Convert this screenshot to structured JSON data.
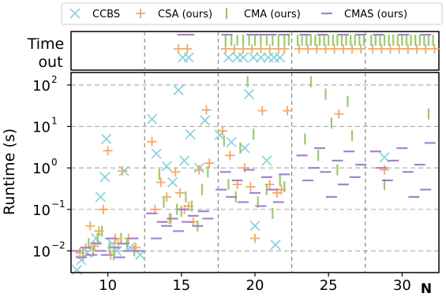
{
  "chart_data": {
    "type": "scatter",
    "xlabel": "N",
    "ylabel": "Runtime (s)",
    "timeout_label": [
      "Time",
      "out"
    ],
    "y_scale": "log",
    "ylim": [
      0.003,
      200
    ],
    "xlim": [
      7.5,
      32.5
    ],
    "x_ticks": [
      10,
      15,
      20,
      25,
      30
    ],
    "x_tick_labels": [
      "10",
      "15",
      "20",
      "25",
      "30"
    ],
    "y_tick_labels": [
      {
        "base": "10",
        "exp": "2",
        "value": 100
      },
      {
        "base": "10",
        "exp": "1",
        "value": 10
      },
      {
        "base": "10",
        "exp": "0",
        "value": 1
      },
      {
        "base": "10",
        "exp": "−1",
        "value": 0.1
      },
      {
        "base": "10",
        "exp": "−2",
        "value": 0.01
      }
    ],
    "group_separators": [
      12.5,
      17.5,
      22.5,
      27.5
    ],
    "grid": true,
    "legend": {
      "placement": "top",
      "entries": [
        {
          "name": "CCBS",
          "marker": "x",
          "color": "#8fd3dc"
        },
        {
          "name": "CSA (ours)",
          "marker": "+",
          "color": "#f6a662"
        },
        {
          "name": "CMA (ours)",
          "marker": "|",
          "color": "#98cc6a"
        },
        {
          "name": "CMAS (ours)",
          "marker": "_",
          "color": "#a682cd"
        }
      ]
    },
    "series": [
      {
        "name": "CCBS",
        "points": [
          [
            7.9,
            0.0035
          ],
          [
            8.2,
            0.006
          ],
          [
            8.6,
            0.009
          ],
          [
            9.2,
            0.02
          ],
          [
            9.5,
            0.2
          ],
          [
            9.8,
            0.6
          ],
          [
            9.9,
            5
          ],
          [
            10.3,
            0.015
          ],
          [
            10.6,
            0.01
          ],
          [
            11.1,
            0.85
          ],
          [
            11.5,
            0.012
          ],
          [
            12.2,
            0.008
          ],
          [
            13.0,
            15
          ],
          [
            13.3,
            2.2
          ],
          [
            14.0,
            1.1
          ],
          [
            14.4,
            0.45
          ],
          [
            14.8,
            75
          ],
          [
            15.2,
            1.5
          ],
          [
            15.6,
            6.5
          ],
          [
            16.2,
            1.0
          ],
          [
            16.6,
            14
          ],
          [
            17.6,
            6.2
          ],
          [
            18.4,
            4.2
          ],
          [
            19.3,
            3.0
          ],
          [
            19.6,
            60
          ],
          [
            20.0,
            0.04
          ],
          [
            20.8,
            1.5
          ],
          [
            21.4,
            0.014
          ],
          [
            28.8,
            1.8
          ]
        ],
        "timeouts": [
          15.1,
          15.5,
          18.2,
          18.8,
          19.2,
          19.9,
          20.4,
          20.9,
          21.3,
          21.7
        ]
      },
      {
        "name": "CSA (ours)",
        "points": [
          [
            8.1,
            0.009
          ],
          [
            8.5,
            0.012
          ],
          [
            8.8,
            0.04
          ],
          [
            9.1,
            0.013
          ],
          [
            9.4,
            0.03
          ],
          [
            9.7,
            0.1
          ],
          [
            10.0,
            2.6
          ],
          [
            10.2,
            0.008
          ],
          [
            10.5,
            0.02
          ],
          [
            10.7,
            0.015
          ],
          [
            11.0,
            0.85
          ],
          [
            11.4,
            0.02
          ],
          [
            11.9,
            0.012
          ],
          [
            13.0,
            4.3
          ],
          [
            13.2,
            0.1
          ],
          [
            13.6,
            0.45
          ],
          [
            14.0,
            0.2
          ],
          [
            14.3,
            0.06
          ],
          [
            14.6,
            0.8
          ],
          [
            14.9,
            0.25
          ],
          [
            15.2,
            0.1
          ],
          [
            15.5,
            0.12
          ],
          [
            15.8,
            0.05
          ],
          [
            16.2,
            0.9
          ],
          [
            16.7,
            25
          ],
          [
            16.9,
            1.3
          ],
          [
            17.8,
            7.8
          ],
          [
            18.3,
            2.0
          ],
          [
            18.8,
            0.4
          ],
          [
            19.3,
            1.0
          ],
          [
            19.7,
            0.35
          ],
          [
            20.0,
            0.02
          ],
          [
            20.5,
            24
          ],
          [
            21.0,
            0.4
          ],
          [
            21.5,
            0.25
          ],
          [
            21.8,
            0.3
          ],
          [
            22.2,
            24
          ],
          [
            25.7,
            20
          ],
          [
            28.8,
            0.9
          ]
        ],
        "timeouts": [
          14.8,
          15.4,
          18.0,
          18.6,
          19.2,
          19.8,
          20.4,
          21.0,
          21.6,
          22.0,
          23.0,
          23.6,
          24.2,
          24.8,
          25.4,
          26.0,
          26.6,
          27.2,
          28.0,
          28.6,
          29.2,
          29.8,
          30.4,
          31.0,
          31.6,
          32.2
        ]
      },
      {
        "name": "CMA (ours)",
        "points": [
          [
            8.3,
            0.008
          ],
          [
            8.7,
            0.015
          ],
          [
            9.0,
            0.01
          ],
          [
            9.3,
            0.02
          ],
          [
            9.6,
            0.03
          ],
          [
            10.1,
            0.012
          ],
          [
            10.4,
            0.008
          ],
          [
            10.9,
            0.02
          ],
          [
            11.3,
            0.015
          ],
          [
            11.8,
            0.01
          ],
          [
            13.5,
            0.7
          ],
          [
            13.8,
            0.15
          ],
          [
            14.2,
            0.06
          ],
          [
            14.7,
            0.1
          ],
          [
            15.0,
            0.09
          ],
          [
            15.3,
            0.2
          ],
          [
            15.7,
            0.12
          ],
          [
            16.1,
            0.04
          ],
          [
            16.4,
            0.3
          ],
          [
            16.8,
            0.8
          ],
          [
            17.9,
            4.5
          ],
          [
            18.2,
            0.4
          ],
          [
            18.7,
            0.2
          ],
          [
            19.0,
            3.0
          ],
          [
            19.5,
            120
          ],
          [
            19.9,
            6.5
          ],
          [
            20.2,
            0.15
          ],
          [
            20.8,
            0.3
          ],
          [
            21.2,
            0.08
          ],
          [
            21.7,
            0.5
          ],
          [
            22.0,
            0.35
          ],
          [
            23.4,
            5.0
          ],
          [
            23.8,
            120
          ],
          [
            24.3,
            2.0
          ],
          [
            24.8,
            60
          ],
          [
            25.2,
            12
          ],
          [
            25.6,
            0.9
          ],
          [
            26.3,
            40
          ],
          [
            26.6,
            6.0
          ],
          [
            28.8,
            0.4
          ],
          [
            31.8,
            20
          ]
        ],
        "timeouts": [
          18.0,
          18.4,
          18.8,
          19.2,
          19.6,
          20.0,
          20.4,
          20.8,
          21.2,
          21.6,
          22.0,
          22.3,
          22.9,
          23.2,
          23.5,
          23.8,
          24.1,
          24.4,
          24.7,
          25.0,
          25.3,
          25.6,
          25.9,
          26.2,
          26.5,
          26.8,
          27.1,
          27.4,
          27.9,
          28.2,
          28.5,
          28.8,
          29.1,
          29.4,
          29.7,
          30.0,
          30.3,
          30.6,
          30.9,
          31.2,
          31.5,
          31.8,
          32.1
        ]
      },
      {
        "name": "CMAS (ours)",
        "points": [
          [
            7.8,
            0.01
          ],
          [
            8.2,
            0.007
          ],
          [
            8.5,
            0.012
          ],
          [
            8.9,
            0.008
          ],
          [
            9.2,
            0.015
          ],
          [
            9.5,
            0.01
          ],
          [
            9.9,
            0.008
          ],
          [
            10.2,
            0.02
          ],
          [
            10.5,
            0.012
          ],
          [
            10.8,
            0.007
          ],
          [
            11.1,
            0.015
          ],
          [
            11.4,
            0.01
          ],
          [
            11.7,
            0.02
          ],
          [
            12.1,
            0.01
          ],
          [
            13.0,
            0.08
          ],
          [
            13.3,
            0.02
          ],
          [
            13.7,
            0.05
          ],
          [
            14.0,
            0.04
          ],
          [
            14.4,
            0.06
          ],
          [
            14.8,
            0.03
          ],
          [
            15.1,
            0.1
          ],
          [
            15.4,
            0.05
          ],
          [
            15.8,
            0.07
          ],
          [
            16.1,
            0.04
          ],
          [
            16.5,
            0.09
          ],
          [
            16.8,
            0.06
          ],
          [
            17.7,
            0.3
          ],
          [
            18.0,
            0.8
          ],
          [
            18.4,
            0.2
          ],
          [
            18.8,
            0.5
          ],
          [
            19.2,
            0.15
          ],
          [
            19.6,
            0.9
          ],
          [
            20.0,
            0.25
          ],
          [
            20.4,
            0.12
          ],
          [
            20.8,
            0.6
          ],
          [
            21.2,
            0.3
          ],
          [
            21.6,
            0.15
          ],
          [
            22.0,
            0.7
          ],
          [
            23.2,
            2.0
          ],
          [
            23.6,
            0.5
          ],
          [
            24.0,
            1.0
          ],
          [
            24.4,
            3.0
          ],
          [
            24.8,
            0.8
          ],
          [
            25.2,
            0.2
          ],
          [
            25.6,
            1.5
          ],
          [
            26.0,
            0.4
          ],
          [
            26.4,
            2.5
          ],
          [
            26.8,
            0.6
          ],
          [
            27.2,
            1.2
          ],
          [
            28.2,
            2.5
          ],
          [
            28.6,
            1.0
          ],
          [
            29.0,
            0.5
          ],
          [
            29.4,
            1.5
          ],
          [
            30.0,
            3.0
          ],
          [
            30.4,
            0.8
          ],
          [
            30.8,
            0.2
          ],
          [
            31.2,
            1.2
          ],
          [
            31.6,
            0.3
          ],
          [
            31.9,
            4.0
          ]
        ],
        "timeouts": [
          15.1,
          15.5,
          18.1,
          19.8,
          20.4,
          21.1,
          22.0,
          23.4,
          24.6,
          26.0,
          27.2,
          28.4,
          30.1,
          31.6
        ]
      }
    ]
  }
}
